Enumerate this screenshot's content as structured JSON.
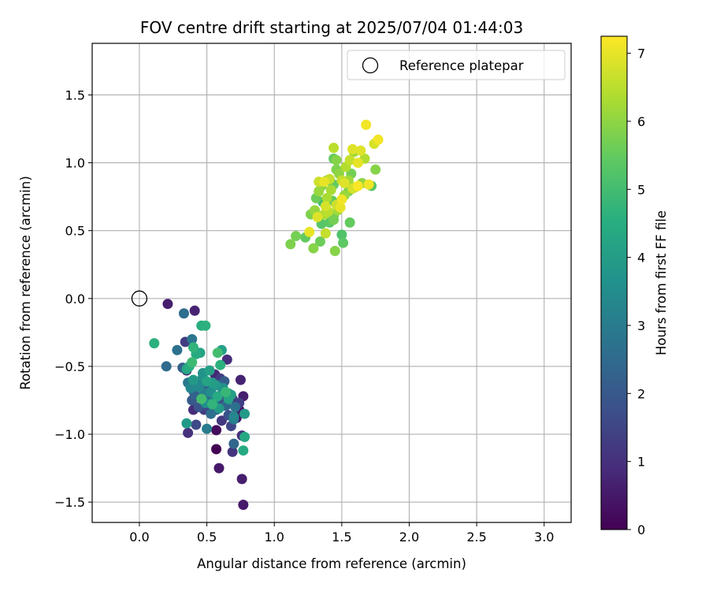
{
  "chart_data": {
    "type": "scatter",
    "title": "FOV centre drift starting at 2025/07/04 01:44:03",
    "xlabel": "Angular distance from reference (arcmin)",
    "ylabel": "Rotation from reference (arcmin)",
    "xlim": [
      -0.35,
      3.2
    ],
    "ylim": [
      -1.65,
      1.88
    ],
    "xticks": [
      0.0,
      0.5,
      1.0,
      1.5,
      2.0,
      2.5,
      3.0
    ],
    "xtick_labels": [
      "0.0",
      "0.5",
      "1.0",
      "1.5",
      "2.0",
      "2.5",
      "3.0"
    ],
    "yticks": [
      -1.5,
      -1.0,
      -0.5,
      0.0,
      0.5,
      1.0,
      1.5
    ],
    "ytick_labels": [
      "−1.5",
      "−1.0",
      "−0.5",
      "0.0",
      "0.5",
      "1.0",
      "1.5"
    ],
    "grid": true,
    "legend": {
      "position": "upper right",
      "entries": [
        "Reference platepar"
      ]
    },
    "reference": {
      "x": 0.0,
      "y": 0.0,
      "label": "Reference platepar"
    },
    "colorbar": {
      "label": "Hours from first FF file",
      "colormap": "viridis",
      "range": [
        0,
        7.25
      ],
      "ticks": [
        0,
        1,
        2,
        3,
        4,
        5,
        6,
        7
      ],
      "tick_labels": [
        "0",
        "1",
        "2",
        "3",
        "4",
        "5",
        "6",
        "7"
      ]
    },
    "points": [
      [
        0.21,
        -0.04,
        0.6
      ],
      [
        0.41,
        -0.09,
        0.7
      ],
      [
        0.33,
        -0.11,
        2.6
      ],
      [
        0.34,
        -0.32,
        1.3
      ],
      [
        0.39,
        -0.3,
        2.8
      ],
      [
        0.28,
        -0.38,
        2.7
      ],
      [
        0.2,
        -0.5,
        2.5
      ],
      [
        0.32,
        -0.51,
        2.2
      ],
      [
        0.35,
        -0.53,
        1.1
      ],
      [
        0.36,
        -0.62,
        2.9
      ],
      [
        0.38,
        -0.66,
        3.3
      ],
      [
        0.4,
        -0.68,
        1.1
      ],
      [
        0.41,
        -0.71,
        2.3
      ],
      [
        0.39,
        -0.75,
        2.0
      ],
      [
        0.4,
        -0.82,
        0.9
      ],
      [
        0.44,
        -0.8,
        1.9
      ],
      [
        0.47,
        -0.58,
        3.6
      ],
      [
        0.45,
        -0.62,
        2.9
      ],
      [
        0.5,
        -0.64,
        2.4
      ],
      [
        0.48,
        -0.7,
        3.1
      ],
      [
        0.52,
        -0.73,
        2.2
      ],
      [
        0.55,
        -0.76,
        3.4
      ],
      [
        0.51,
        -0.8,
        1.6
      ],
      [
        0.48,
        -0.82,
        1.3
      ],
      [
        0.53,
        -0.85,
        2.6
      ],
      [
        0.57,
        -0.82,
        2.1
      ],
      [
        0.56,
        -0.56,
        0.8
      ],
      [
        0.6,
        -0.59,
        1.3
      ],
      [
        0.63,
        -0.61,
        2.1
      ],
      [
        0.65,
        -0.45,
        0.9
      ],
      [
        0.62,
        -0.68,
        2.0
      ],
      [
        0.66,
        -0.7,
        3.2
      ],
      [
        0.61,
        -0.75,
        1.7
      ],
      [
        0.64,
        -0.79,
        2.4
      ],
      [
        0.69,
        -0.74,
        1.2
      ],
      [
        0.71,
        -0.8,
        2.7
      ],
      [
        0.74,
        -0.82,
        0.5
      ],
      [
        0.75,
        -0.6,
        0.7
      ],
      [
        0.77,
        -0.72,
        0.6
      ],
      [
        0.74,
        -0.77,
        1.4
      ],
      [
        0.66,
        -0.86,
        1.8
      ],
      [
        0.7,
        -0.89,
        3.0
      ],
      [
        0.72,
        -0.88,
        0.4
      ],
      [
        0.68,
        -0.94,
        1.5
      ],
      [
        0.61,
        -0.9,
        1.2
      ],
      [
        0.57,
        -0.97,
        0.2
      ],
      [
        0.5,
        -0.96,
        3.0
      ],
      [
        0.42,
        -0.93,
        1.6
      ],
      [
        0.36,
        -0.99,
        1.0
      ],
      [
        0.35,
        -0.92,
        3.9
      ],
      [
        0.57,
        -1.11,
        0.0
      ],
      [
        0.7,
        -1.07,
        2.4
      ],
      [
        0.69,
        -1.13,
        1.1
      ],
      [
        0.76,
        -1.01,
        0.9
      ],
      [
        0.78,
        -1.02,
        4.3
      ],
      [
        0.77,
        -1.12,
        4.4
      ],
      [
        0.59,
        -1.25,
        0.5
      ],
      [
        0.76,
        -1.33,
        0.6
      ],
      [
        0.77,
        -1.52,
        0.5
      ],
      [
        0.78,
        -0.85,
        3.9
      ],
      [
        0.46,
        -0.2,
        4.5
      ],
      [
        0.49,
        -0.2,
        4.6
      ],
      [
        0.11,
        -0.33,
        4.6
      ],
      [
        0.4,
        -0.36,
        4.7
      ],
      [
        0.42,
        -0.41,
        4.4
      ],
      [
        0.45,
        -0.4,
        4.2
      ],
      [
        0.39,
        -0.47,
        4.9
      ],
      [
        0.37,
        -0.5,
        4.5
      ],
      [
        0.35,
        -0.52,
        4.3
      ],
      [
        0.52,
        -0.53,
        4.1
      ],
      [
        0.47,
        -0.55,
        3.7
      ],
      [
        0.5,
        -0.61,
        4.2
      ],
      [
        0.54,
        -0.62,
        4.0
      ],
      [
        0.57,
        -0.64,
        3.8
      ],
      [
        0.58,
        -0.4,
        5.0
      ],
      [
        0.61,
        -0.38,
        4.1
      ],
      [
        0.6,
        -0.49,
        4.6
      ],
      [
        0.62,
        -0.66,
        3.6
      ],
      [
        0.64,
        -0.69,
        4.8
      ],
      [
        0.58,
        -0.72,
        4.4
      ],
      [
        0.53,
        -0.69,
        3.5
      ],
      [
        0.46,
        -0.74,
        5.0
      ],
      [
        0.49,
        -0.77,
        3.6
      ],
      [
        0.54,
        -0.78,
        4.7
      ],
      [
        0.59,
        -0.81,
        3.9
      ],
      [
        0.66,
        -0.74,
        4.2
      ],
      [
        0.68,
        -0.71,
        4.0
      ],
      [
        0.7,
        -0.87,
        3.3
      ],
      [
        0.4,
        -0.6,
        3.9
      ],
      [
        0.44,
        -0.65,
        3.4
      ],
      [
        1.12,
        0.4,
        5.8
      ],
      [
        1.16,
        0.46,
        5.7
      ],
      [
        1.23,
        0.45,
        5.5
      ],
      [
        1.26,
        0.49,
        7.0
      ],
      [
        1.29,
        0.37,
        5.9
      ],
      [
        1.34,
        0.42,
        5.6
      ],
      [
        1.27,
        0.62,
        5.8
      ],
      [
        1.3,
        0.65,
        6.1
      ],
      [
        1.32,
        0.6,
        6.9
      ],
      [
        1.35,
        0.55,
        5.3
      ],
      [
        1.38,
        0.48,
        6.6
      ],
      [
        1.41,
        0.56,
        5.4
      ],
      [
        1.44,
        0.61,
        5.6
      ],
      [
        1.45,
        0.35,
        5.9
      ],
      [
        1.5,
        0.47,
        5.2
      ],
      [
        1.51,
        0.41,
        5.4
      ],
      [
        1.56,
        0.56,
        5.5
      ],
      [
        1.47,
        0.65,
        6.2
      ],
      [
        1.44,
        0.58,
        5.7
      ],
      [
        1.4,
        0.64,
        6.5
      ],
      [
        1.38,
        0.68,
        6.8
      ],
      [
        1.36,
        0.71,
        5.0
      ],
      [
        1.39,
        0.74,
        6.3
      ],
      [
        1.43,
        0.72,
        5.5
      ],
      [
        1.46,
        0.69,
        6.7
      ],
      [
        1.49,
        0.67,
        7.0
      ],
      [
        1.5,
        0.73,
        7.1
      ],
      [
        1.52,
        0.76,
        6.1
      ],
      [
        1.55,
        0.79,
        5.8
      ],
      [
        1.58,
        0.81,
        6.8
      ],
      [
        1.6,
        0.82,
        6.4
      ],
      [
        1.62,
        0.83,
        7.2
      ],
      [
        1.65,
        0.85,
        6.0
      ],
      [
        1.7,
        0.84,
        7.1
      ],
      [
        1.72,
        0.83,
        5.3
      ],
      [
        1.31,
        0.74,
        5.6
      ],
      [
        1.33,
        0.79,
        6.1
      ],
      [
        1.35,
        0.83,
        5.9
      ],
      [
        1.37,
        0.86,
        7.0
      ],
      [
        1.39,
        0.87,
        5.2
      ],
      [
        1.41,
        0.88,
        6.6
      ],
      [
        1.44,
        0.84,
        5.5
      ],
      [
        1.42,
        0.8,
        6.3
      ],
      [
        1.46,
        0.95,
        5.8
      ],
      [
        1.48,
        0.92,
        6.0
      ],
      [
        1.52,
        0.85,
        6.9
      ],
      [
        1.55,
        0.87,
        6.2
      ],
      [
        1.57,
        0.92,
        5.7
      ],
      [
        1.53,
        0.97,
        6.4
      ],
      [
        1.56,
        1.02,
        6.6
      ],
      [
        1.59,
        1.08,
        6.2
      ],
      [
        1.62,
        1.0,
        7.0
      ],
      [
        1.64,
        1.09,
        6.9
      ],
      [
        1.67,
        1.03,
        6.4
      ],
      [
        1.44,
        1.03,
        5.5
      ],
      [
        1.46,
        1.02,
        5.9
      ],
      [
        1.44,
        1.11,
        6.5
      ],
      [
        1.58,
        1.1,
        6.9
      ],
      [
        1.68,
        1.28,
        7.1
      ],
      [
        1.74,
        1.14,
        6.8
      ],
      [
        1.77,
        1.17,
        7.1
      ],
      [
        1.75,
        0.95,
        5.9
      ],
      [
        1.5,
        0.87,
        6.6
      ],
      [
        1.33,
        0.86,
        6.7
      ],
      [
        1.37,
        0.62,
        6.4
      ]
    ]
  }
}
